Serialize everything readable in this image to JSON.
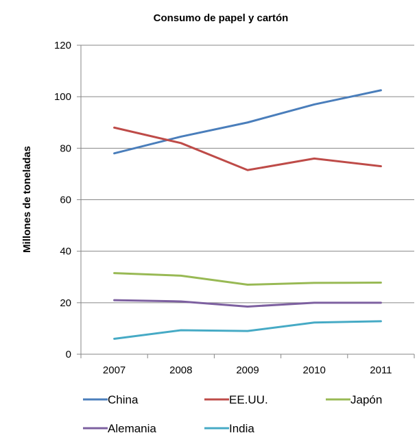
{
  "chart_data": {
    "type": "line",
    "title": "Consumo de papel y cartón",
    "xlabel": "",
    "ylabel": "Millones de toneladas",
    "categories": [
      "2007",
      "2008",
      "2009",
      "2010",
      "2011"
    ],
    "ylim": [
      0,
      120
    ],
    "yticks": [
      0,
      20,
      40,
      60,
      80,
      100,
      120
    ],
    "grid": true,
    "legend_position": "bottom",
    "series": [
      {
        "name": "China",
        "color": "#4a7ebb",
        "values": [
          78,
          84.5,
          90,
          97,
          102.5
        ]
      },
      {
        "name": "EE.UU.",
        "color": "#be4b48",
        "values": [
          88,
          82,
          71.5,
          76,
          73
        ]
      },
      {
        "name": "Japón",
        "color": "#98b954",
        "values": [
          31.5,
          30.5,
          27,
          27.7,
          27.8
        ]
      },
      {
        "name": "Alemania",
        "color": "#7d60a0",
        "values": [
          21,
          20.5,
          18.5,
          20,
          20
        ]
      },
      {
        "name": "India",
        "color": "#46aac5",
        "values": [
          6,
          9.3,
          9,
          12.3,
          12.8
        ]
      }
    ]
  }
}
